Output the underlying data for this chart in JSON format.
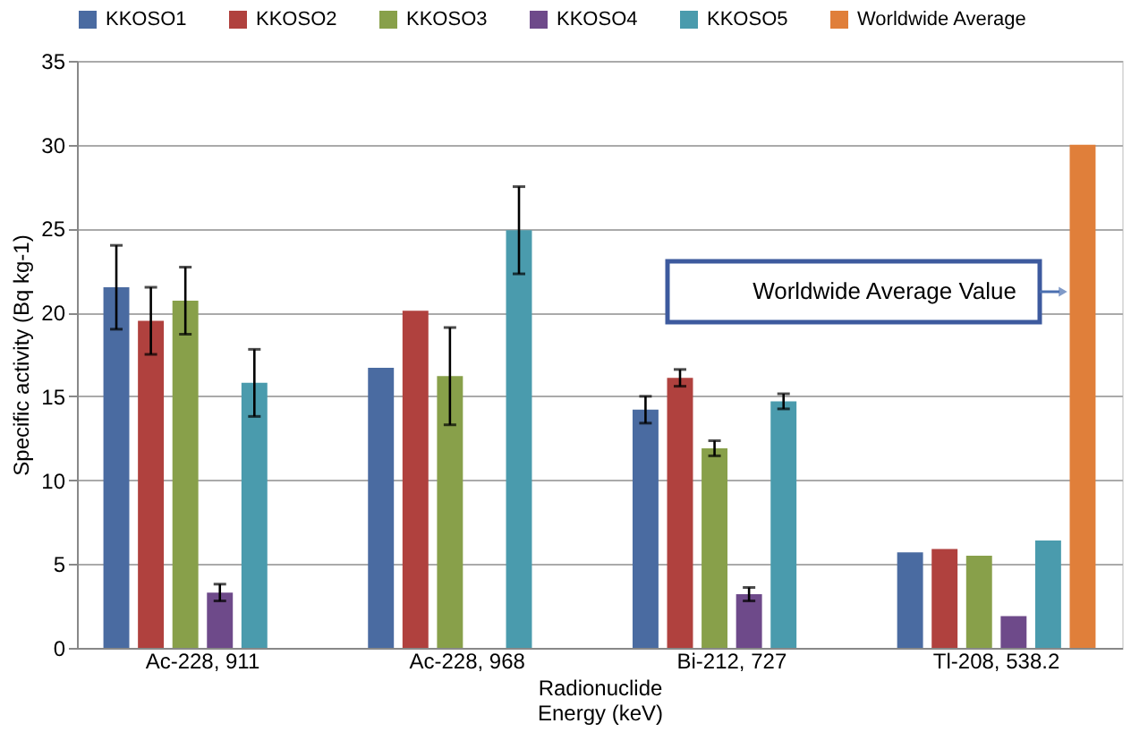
{
  "chart_data": {
    "type": "bar",
    "xlabel": "Radionuclide\nEnergy (keV)",
    "ylabel": "Specific activity (Bq kg-1)",
    "categories": [
      "Ac-228, 911",
      "Ac-228, 968",
      "Bi-212, 727",
      "Tl-208, 538.2"
    ],
    "series": [
      {
        "name": "KKOSO1",
        "color": "#4a6ba1",
        "values": [
          21.5,
          16.7,
          14.2,
          5.7
        ],
        "errors": [
          2.5,
          null,
          0.8,
          null
        ]
      },
      {
        "name": "KKOSO2",
        "color": "#b0413e",
        "values": [
          19.5,
          20.1,
          16.1,
          5.9
        ],
        "errors": [
          2,
          null,
          0.5,
          null
        ]
      },
      {
        "name": "KKOSO3",
        "color": "#88a04a",
        "values": [
          20.7,
          16.2,
          11.9,
          5.5
        ],
        "errors": [
          2,
          2.9,
          0.45,
          null
        ]
      },
      {
        "name": "KKOSO4",
        "color": "#6e4a8a",
        "values": [
          3.3,
          null,
          3.2,
          1.9
        ],
        "errors": [
          0.5,
          null,
          0.4,
          null
        ]
      },
      {
        "name": "KKOSO5",
        "color": "#4a9bad",
        "values": [
          15.8,
          24.9,
          14.7,
          6.4
        ],
        "errors": [
          2,
          2.6,
          0.45,
          null
        ]
      },
      {
        "name": "Worldwide Average",
        "color": "#e07f3a",
        "values": [
          null,
          null,
          null,
          30
        ],
        "errors": [
          null,
          null,
          null,
          null
        ]
      }
    ],
    "ylim": [
      0,
      35
    ],
    "yticks": [
      0,
      5,
      10,
      15,
      20,
      25,
      30,
      35
    ],
    "grid": "y",
    "legend": "top",
    "annotations": [
      "Worldwide Average Value"
    ]
  }
}
